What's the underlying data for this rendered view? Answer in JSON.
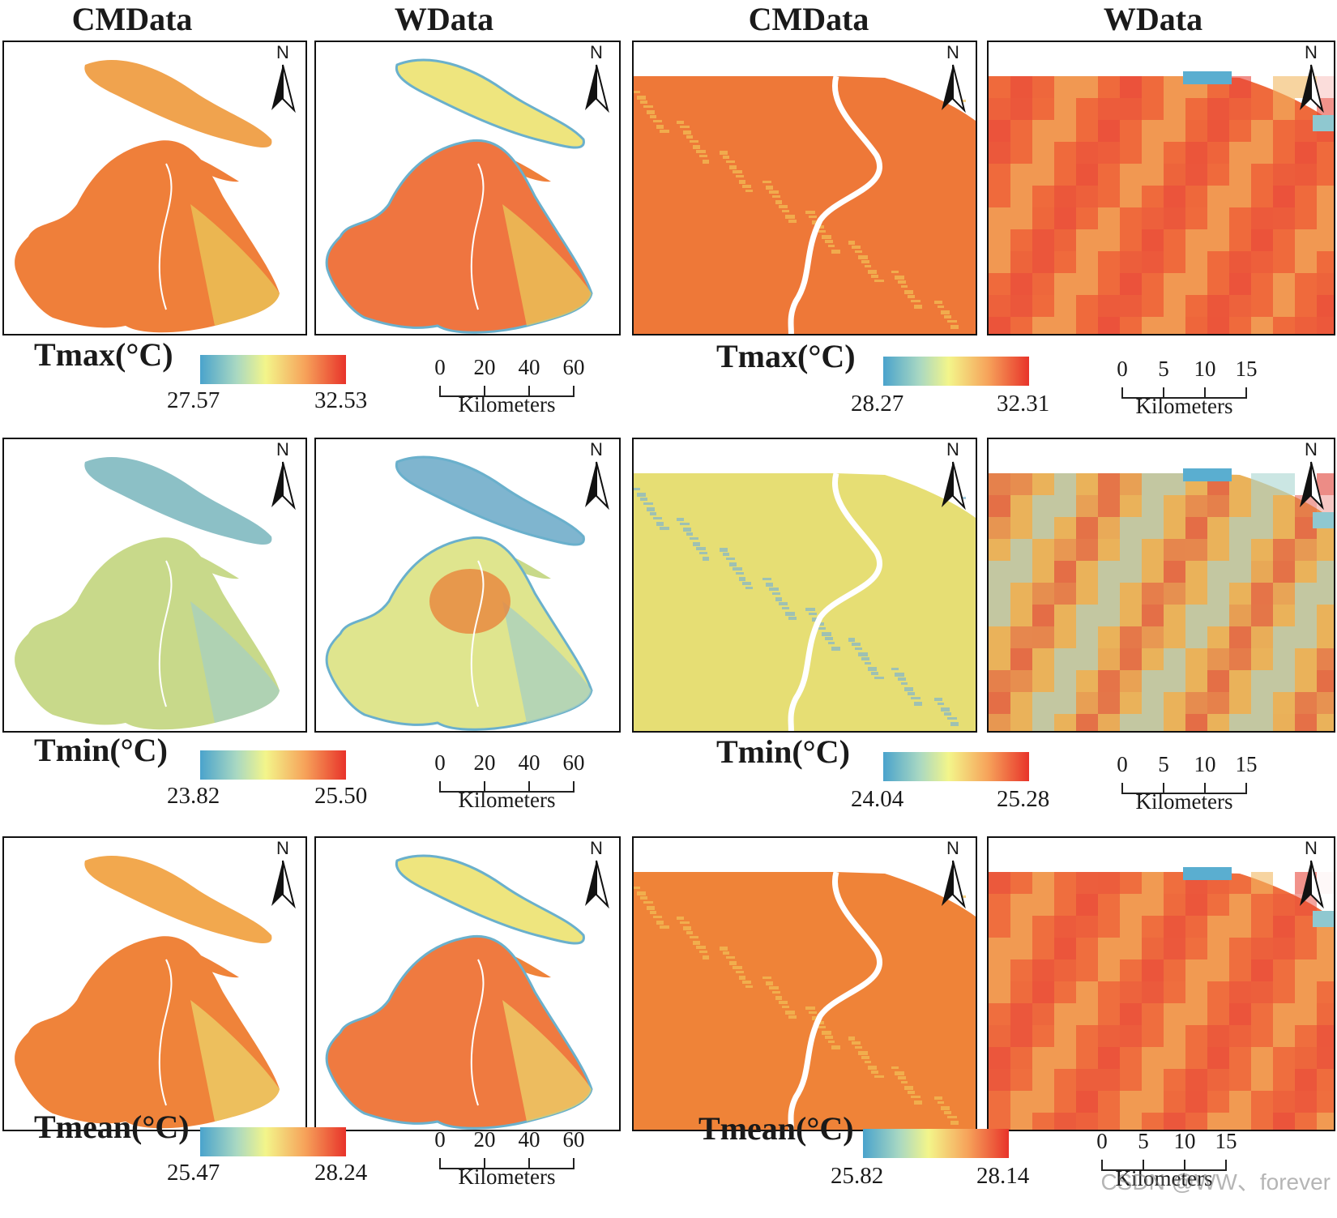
{
  "columns": [
    "CMData",
    "WData",
    "CMData",
    "WData"
  ],
  "rows": [
    {
      "variable": "Tmax(°C)",
      "left_range": {
        "min": "27.57",
        "max": "32.53"
      },
      "right_range": {
        "min": "28.27",
        "max": "32.31"
      }
    },
    {
      "variable": "Tmin(°C)",
      "left_range": {
        "min": "23.82",
        "max": "25.50"
      },
      "right_range": {
        "min": "24.04",
        "max": "25.28"
      }
    },
    {
      "variable": "Tmean(°C)",
      "left_range": {
        "min": "25.47",
        "max": "28.24"
      },
      "right_range": {
        "min": "25.82",
        "max": "28.14"
      }
    }
  ],
  "north_label": "N",
  "scale_left": {
    "ticks": [
      "0",
      "20",
      "40",
      "60"
    ],
    "unit": "Kilometers"
  },
  "scale_right": {
    "ticks": [
      "0",
      "5",
      "10",
      "15"
    ],
    "unit": "Kilometers"
  },
  "colors": {
    "cold": "#4aa3cc",
    "mid": "#f3f58a",
    "hot": "#e8332a",
    "tmax_fill": "#ef7f3a",
    "tmin_fill": "#e9e27a",
    "tmean_fill": "#ee7a35"
  },
  "watermark": "CSDN @WW、forever"
}
